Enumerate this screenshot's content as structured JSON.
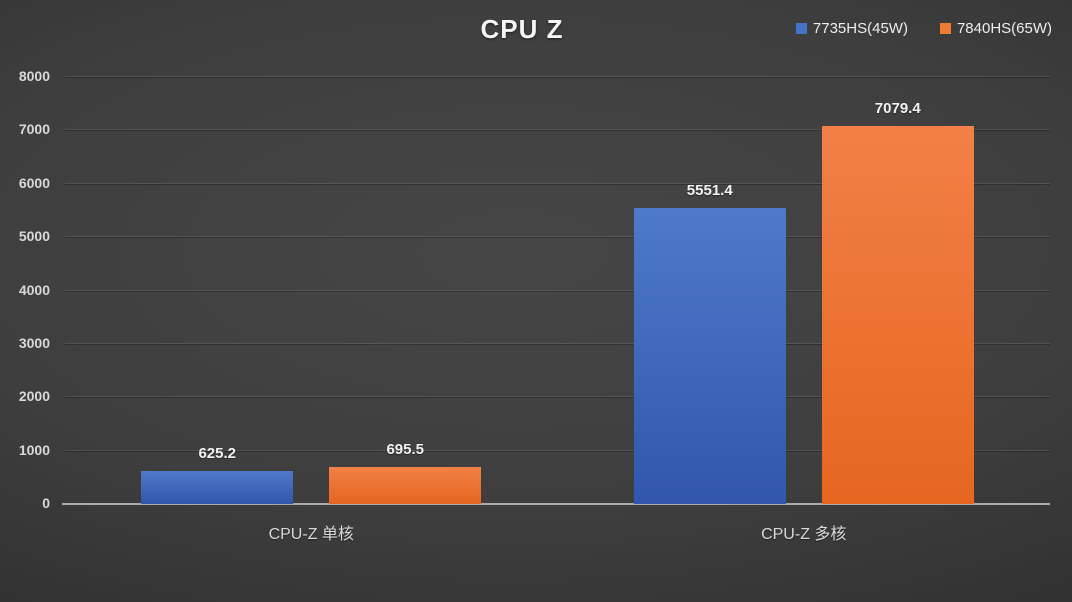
{
  "chart_data": {
    "type": "bar",
    "title": "CPU Z",
    "categories": [
      "CPU-Z 单核",
      "CPU-Z 多核"
    ],
    "series": [
      {
        "name": "7735HS(45W)",
        "color": "#4472c4",
        "color_top": "#5079c9",
        "color_bottom": "#3156ab",
        "values": [
          625.2,
          5551.4
        ]
      },
      {
        "name": "7840HS(65W)",
        "color": "#ed7d31",
        "color_top": "#f28047",
        "color_bottom": "#e66620",
        "values": [
          695.5,
          7079.4
        ]
      }
    ],
    "ylim": [
      0,
      8000
    ],
    "yticks": [
      0,
      1000,
      2000,
      3000,
      4000,
      5000,
      6000,
      7000,
      8000
    ],
    "grid": true,
    "legend_position": "top-right",
    "colors": {
      "background": "#3f3f3f",
      "axis_line": "#ababab",
      "gridline": "#4d4d4d",
      "tick_text": "#d9d9d9",
      "label_text": "#f2f2f2"
    }
  }
}
